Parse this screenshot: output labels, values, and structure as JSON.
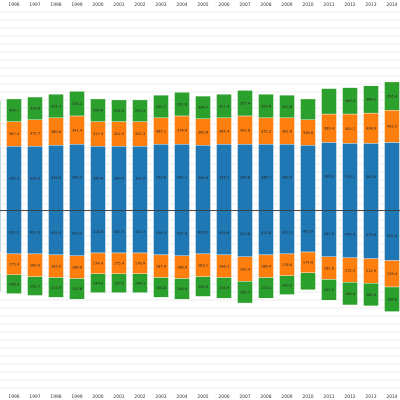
{
  "chart_data": {
    "type": "bar",
    "stacked": true,
    "diverging": true,
    "grid": true,
    "years": [
      "1995",
      "1996",
      "1997",
      "1998",
      "1999",
      "2000",
      "2001",
      "2002",
      "2003",
      "2004",
      "2005",
      "2006",
      "2007",
      "2008",
      "2009",
      "2010",
      "2011",
      "2012",
      "2013",
      "2014",
      "2015",
      "2016",
      "2017"
    ],
    "colors": {
      "blue": "#1f77b4",
      "orange": "#ff7f0e",
      "green": "#2ca02c"
    },
    "ylim": [
      -95,
      105
    ],
    "upper_series": [
      {
        "color": "#1f77b4",
        "values": [
          34,
          34,
          34,
          34.5,
          35,
          34,
          34,
          34,
          35,
          35,
          34.5,
          35,
          35,
          35,
          35,
          34.5,
          36,
          35.5,
          35.5,
          36,
          37,
          36,
          37
        ],
        "labels": [
          "",
          "335.5",
          "333.0",
          "339.8",
          "343.7",
          "340.6",
          "340.9",
          "331.0",
          "333.6",
          "342.1",
          "339.8",
          "333.1",
          "339.8",
          "338.7",
          "330.9",
          "",
          "336.0",
          "375.1",
          "382.9",
          "",
          "",
          "",
          ""
        ]
      },
      {
        "color": "#ff7f0e",
        "values": [
          13,
          13,
          14,
          14.5,
          15,
          13,
          13,
          13,
          14,
          15,
          14,
          14,
          15,
          14,
          14,
          13.5,
          15,
          15.5,
          16,
          17,
          18,
          18,
          17
        ],
        "labels": [
          "",
          "367.4",
          "375.7",
          "380.8",
          "391.4",
          "317.3",
          "322.5",
          "325.3",
          "385.1",
          "376.6",
          "360.8",
          "365.4",
          "392.8",
          "372.2",
          "362.8",
          "336.6",
          "383.4",
          "400.7",
          "408.9",
          "442.5",
          "446.6",
          "453.1",
          "435.6"
        ]
      },
      {
        "color": "#2ca02c",
        "values": [
          11,
          12,
          12,
          12.5,
          13,
          12,
          11.5,
          11.5,
          12,
          12.5,
          12,
          12.5,
          13.5,
          12.5,
          12,
          11,
          13.5,
          14,
          14.5,
          15,
          16,
          17,
          15
        ],
        "labels": [
          "",
          "306.7",
          "314.8",
          "325.3",
          "326.3",
          "294.6",
          "294.9",
          "291.3",
          "325.7",
          "331.6",
          "304.7",
          "327.4",
          "357.4",
          "329.6",
          "323.8",
          "",
          "",
          "365.4",
          "366.1",
          "356.4",
          "446.7",
          "476.3",
          ""
        ]
      }
    ],
    "lower_series": [
      {
        "color": "#1f77b4",
        "values": [
          22,
          23,
          23,
          23.5,
          24,
          22.5,
          22.5,
          22.5,
          23.5,
          24,
          23,
          23.5,
          24.5,
          23.5,
          23,
          22,
          24.5,
          25,
          25.5,
          26.5,
          27,
          28,
          27
        ],
        "labels": [
          "",
          "422.0",
          "421.3",
          "415.5",
          "419.2",
          "418.8",
          "407.5",
          "417.3",
          "416.3",
          "437.0",
          "406.5",
          "419.8",
          "413.8",
          "415.8",
          "413.3",
          "403.8",
          "441.9",
          "470.4",
          "475.8",
          "502.4",
          "488.5",
          "502.0",
          "524.6"
        ]
      },
      {
        "color": "#ff7f0e",
        "values": [
          11,
          11,
          12,
          12,
          12,
          11,
          11,
          11,
          12,
          12,
          12,
          12,
          13,
          12,
          11.5,
          11,
          12,
          13,
          13,
          14,
          14,
          15,
          15
        ],
        "labels": [
          "",
          "175.4",
          "180.0",
          "185.0",
          "186.6",
          "174.4",
          "175.4",
          "176.4",
          "187.0",
          "186.6",
          "183.1",
          "186.3",
          "192.4",
          "186.4",
          "178.6",
          "174.6",
          "182.6",
          "212.3",
          "212.9",
          "235.4",
          "232.6",
          "244.7",
          "243.5"
        ]
      },
      {
        "color": "#2ca02c",
        "values": [
          10,
          10,
          10,
          10.5,
          11,
          10,
          10,
          10,
          10.5,
          11,
          10.5,
          11,
          11.5,
          11,
          10,
          9,
          11,
          12,
          12,
          13,
          14,
          14,
          13
        ],
        "labels": [
          "",
          "148.0",
          "152.7",
          "153.9",
          "153.8",
          "149.0",
          "150.5",
          "148.3",
          "158.8",
          "156.6",
          "150.3",
          "154.9",
          "165.7",
          "153.5",
          "149.0",
          "",
          "157.2",
          "160.4",
          "165.4",
          "188.6",
          "186.9",
          "198.4",
          "185.9"
        ]
      }
    ]
  }
}
